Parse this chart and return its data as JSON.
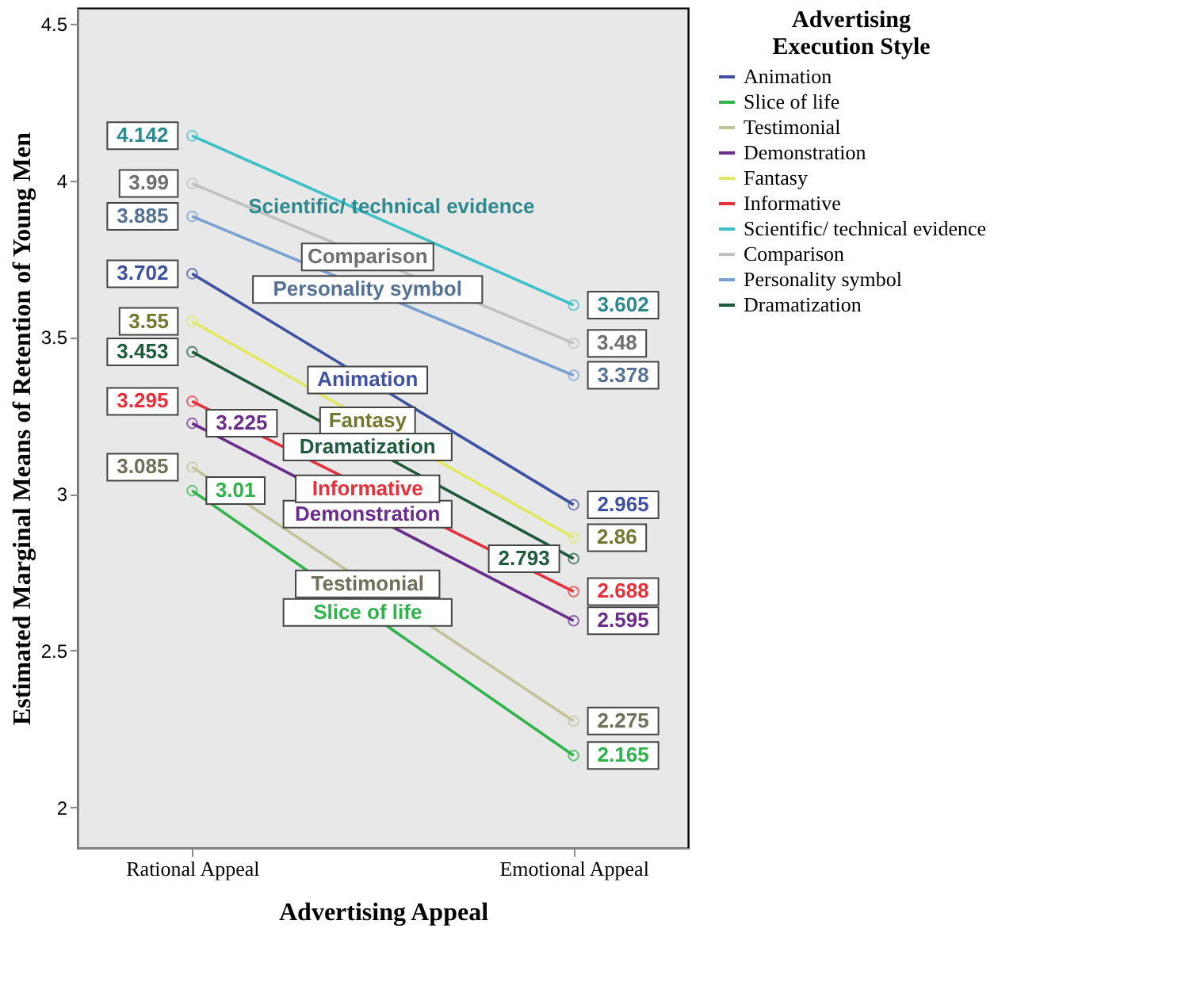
{
  "chart_data": {
    "type": "line",
    "xlabel": "Advertising Appeal",
    "ylabel": "Estimated Marginal Means of Retention of Young Men",
    "legend_title": "Advertising Execution Style",
    "categories": [
      "Rational Appeal",
      "Emotional Appeal"
    ],
    "series": [
      {
        "name": "Animation",
        "color": "#3f51a3",
        "values": [
          3.702,
          2.965
        ]
      },
      {
        "name": "Slice of life",
        "color": "#2fb34a",
        "values": [
          3.01,
          2.165
        ]
      },
      {
        "name": "Testimonial",
        "color": "#c3c39a",
        "values": [
          3.085,
          2.275
        ]
      },
      {
        "name": "Demonstration",
        "color": "#6a2d8c",
        "values": [
          3.225,
          2.595
        ]
      },
      {
        "name": "Fantasy",
        "color": "#e0e860",
        "values": [
          3.55,
          2.86
        ]
      },
      {
        "name": "Informative",
        "color": "#e8303c",
        "values": [
          3.295,
          2.688
        ]
      },
      {
        "name": "Scientific/ technical evidence",
        "color": "#3ec0c8",
        "values": [
          4.142,
          3.602
        ]
      },
      {
        "name": "Comparison",
        "color": "#c0c0c0",
        "values": [
          3.99,
          3.48
        ]
      },
      {
        "name": "Personality symbol",
        "color": "#78a0d0",
        "values": [
          3.885,
          3.378
        ]
      },
      {
        "name": "Dramatization",
        "color": "#1e5a3c",
        "values": [
          3.453,
          2.793
        ]
      }
    ],
    "ylim": [
      1.87,
      4.55
    ],
    "yticks": [
      2,
      2.5,
      3,
      3.5,
      4,
      4.5
    ],
    "grid": false,
    "legend": "right",
    "marker": "circle",
    "line_style": "solid",
    "data_labels": true
  }
}
